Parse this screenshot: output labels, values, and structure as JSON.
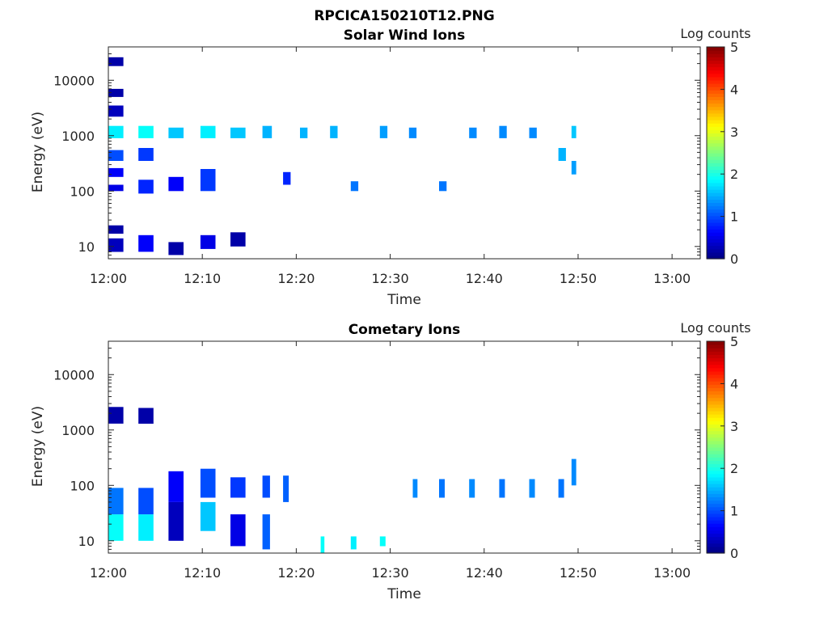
{
  "figure_title": "RPCICA150210T12.PNG",
  "colors": {
    "background": "#ffffff",
    "axis": "#262626",
    "colormap": "jet"
  },
  "chart_data": [
    {
      "type": "heatmap",
      "title": "Solar Wind Ions",
      "xlabel": "Time",
      "ylabel": "Energy (eV)",
      "x_ticks": [
        "12:00",
        "12:10",
        "12:20",
        "12:30",
        "12:40",
        "12:50",
        "13:00"
      ],
      "xlim_minutes": [
        0,
        63
      ],
      "y_scale": "log",
      "y_ticks": [
        10,
        100,
        1000,
        10000
      ],
      "y_tick_labels": [
        "10",
        "100",
        "1000",
        "10000"
      ],
      "ylim": [
        6,
        40000
      ],
      "colorbar": {
        "label": "Log counts",
        "range": [
          0,
          5
        ],
        "ticks": [
          "0",
          "1",
          "2",
          "3",
          "4",
          "5"
        ]
      },
      "time_columns": [
        0,
        3.2,
        6.4,
        9.8,
        13,
        16.4,
        18.6,
        20.4,
        23.6,
        25.8,
        28.9,
        32,
        35.2,
        38.4,
        41.6,
        44.8,
        47.9,
        49.8
      ],
      "cells": [
        {
          "t": [
            0,
            1.6
          ],
          "e": [
            8,
            14
          ],
          "v": 0.3
        },
        {
          "t": [
            0,
            1.6
          ],
          "e": [
            17,
            24
          ],
          "v": 0.2
        },
        {
          "t": [
            0,
            1.6
          ],
          "e": [
            100,
            130
          ],
          "v": 0.5
        },
        {
          "t": [
            0,
            1.6
          ],
          "e": [
            180,
            260
          ],
          "v": 0.6
        },
        {
          "t": [
            0,
            1.6
          ],
          "e": [
            350,
            550
          ],
          "v": 1.0
        },
        {
          "t": [
            0,
            1.6
          ],
          "e": [
            900,
            1500
          ],
          "v": 1.8
        },
        {
          "t": [
            0,
            1.6
          ],
          "e": [
            2200,
            3500
          ],
          "v": 0.3
        },
        {
          "t": [
            0,
            1.6
          ],
          "e": [
            5000,
            7000
          ],
          "v": 0.2
        },
        {
          "t": [
            0,
            1.6
          ],
          "e": [
            18000,
            26000
          ],
          "v": 0.2
        },
        {
          "t": [
            3.2,
            4.8
          ],
          "e": [
            8,
            16
          ],
          "v": 0.6
        },
        {
          "t": [
            3.2,
            4.8
          ],
          "e": [
            90,
            160
          ],
          "v": 0.8
        },
        {
          "t": [
            3.2,
            4.8
          ],
          "e": [
            350,
            600
          ],
          "v": 0.9
        },
        {
          "t": [
            3.2,
            4.8
          ],
          "e": [
            900,
            1500
          ],
          "v": 1.9
        },
        {
          "t": [
            6.4,
            8.0
          ],
          "e": [
            7,
            12
          ],
          "v": 0.2
        },
        {
          "t": [
            6.4,
            8.0
          ],
          "e": [
            100,
            180
          ],
          "v": 0.6
        },
        {
          "t": [
            6.4,
            8.0
          ],
          "e": [
            900,
            1400
          ],
          "v": 1.6
        },
        {
          "t": [
            9.8,
            11.4
          ],
          "e": [
            9,
            16
          ],
          "v": 0.5
        },
        {
          "t": [
            9.8,
            11.4
          ],
          "e": [
            100,
            250
          ],
          "v": 0.9
        },
        {
          "t": [
            9.8,
            11.4
          ],
          "e": [
            900,
            1500
          ],
          "v": 1.8
        },
        {
          "t": [
            13,
            14.6
          ],
          "e": [
            10,
            18
          ],
          "v": 0.2
        },
        {
          "t": [
            13,
            14.6
          ],
          "e": [
            900,
            1400
          ],
          "v": 1.6
        },
        {
          "t": [
            16.4,
            17.4
          ],
          "e": [
            900,
            1500
          ],
          "v": 1.5
        },
        {
          "t": [
            18.6,
            19.4
          ],
          "e": [
            130,
            220
          ],
          "v": 0.8
        },
        {
          "t": [
            20.4,
            21.2
          ],
          "e": [
            900,
            1400
          ],
          "v": 1.5
        },
        {
          "t": [
            23.6,
            24.4
          ],
          "e": [
            900,
            1500
          ],
          "v": 1.5
        },
        {
          "t": [
            25.8,
            26.6
          ],
          "e": [
            100,
            150
          ],
          "v": 1.2
        },
        {
          "t": [
            28.9,
            29.7
          ],
          "e": [
            900,
            1500
          ],
          "v": 1.4
        },
        {
          "t": [
            32,
            32.8
          ],
          "e": [
            900,
            1400
          ],
          "v": 1.3
        },
        {
          "t": [
            35.2,
            36.0
          ],
          "e": [
            100,
            150
          ],
          "v": 1.2
        },
        {
          "t": [
            38.4,
            39.2
          ],
          "e": [
            900,
            1400
          ],
          "v": 1.3
        },
        {
          "t": [
            41.6,
            42.4
          ],
          "e": [
            900,
            1500
          ],
          "v": 1.3
        },
        {
          "t": [
            44.8,
            45.6
          ],
          "e": [
            900,
            1400
          ],
          "v": 1.3
        },
        {
          "t": [
            47.9,
            48.7
          ],
          "e": [
            350,
            600
          ],
          "v": 1.5
        },
        {
          "t": [
            49.3,
            49.8
          ],
          "e": [
            900,
            1500
          ],
          "v": 1.6
        },
        {
          "t": [
            49.3,
            49.8
          ],
          "e": [
            200,
            350
          ],
          "v": 1.4
        }
      ]
    },
    {
      "type": "heatmap",
      "title": "Cometary Ions",
      "xlabel": "Time",
      "ylabel": "Energy (eV)",
      "x_ticks": [
        "12:00",
        "12:10",
        "12:20",
        "12:30",
        "12:40",
        "12:50",
        "13:00"
      ],
      "xlim_minutes": [
        0,
        63
      ],
      "y_scale": "log",
      "y_ticks": [
        10,
        100,
        1000,
        10000
      ],
      "y_tick_labels": [
        "10",
        "100",
        "1000",
        "10000"
      ],
      "ylim": [
        6,
        40000
      ],
      "colorbar": {
        "label": "Log counts",
        "range": [
          0,
          5
        ],
        "ticks": [
          "0",
          "1",
          "2",
          "3",
          "4",
          "5"
        ]
      },
      "time_columns": [
        0,
        3.2,
        6.4,
        9.8,
        13,
        16.4,
        18.6,
        20.4,
        23.6,
        25.8,
        28.9,
        32,
        35.2,
        38.4,
        41.6,
        44.8,
        47.9,
        49.8
      ],
      "cells": [
        {
          "t": [
            0,
            1.6
          ],
          "e": [
            10,
            30
          ],
          "v": 1.9
        },
        {
          "t": [
            0,
            1.6
          ],
          "e": [
            30,
            90
          ],
          "v": 1.2
        },
        {
          "t": [
            0,
            1.6
          ],
          "e": [
            1300,
            2600
          ],
          "v": 0.2
        },
        {
          "t": [
            3.2,
            4.8
          ],
          "e": [
            10,
            30
          ],
          "v": 1.8
        },
        {
          "t": [
            3.2,
            4.8
          ],
          "e": [
            30,
            90
          ],
          "v": 1.0
        },
        {
          "t": [
            3.2,
            4.8
          ],
          "e": [
            1300,
            2500
          ],
          "v": 0.2
        },
        {
          "t": [
            6.4,
            8.0
          ],
          "e": [
            10,
            50
          ],
          "v": 0.3
        },
        {
          "t": [
            6.4,
            8.0
          ],
          "e": [
            50,
            180
          ],
          "v": 0.6
        },
        {
          "t": [
            9.8,
            11.4
          ],
          "e": [
            15,
            50
          ],
          "v": 1.6
        },
        {
          "t": [
            9.8,
            11.4
          ],
          "e": [
            60,
            200
          ],
          "v": 1.0
        },
        {
          "t": [
            13,
            14.6
          ],
          "e": [
            8,
            30
          ],
          "v": 0.5
        },
        {
          "t": [
            13,
            14.6
          ],
          "e": [
            60,
            140
          ],
          "v": 0.9
        },
        {
          "t": [
            16.4,
            17.2
          ],
          "e": [
            7,
            30
          ],
          "v": 1.1
        },
        {
          "t": [
            16.4,
            17.2
          ],
          "e": [
            60,
            150
          ],
          "v": 1.0
        },
        {
          "t": [
            18.6,
            19.2
          ],
          "e": [
            50,
            150
          ],
          "v": 1.1
        },
        {
          "t": [
            22.6,
            23.0
          ],
          "e": [
            6,
            12
          ],
          "v": 1.9
        },
        {
          "t": [
            25.8,
            26.4
          ],
          "e": [
            7,
            12
          ],
          "v": 1.8
        },
        {
          "t": [
            28.9,
            29.5
          ],
          "e": [
            8,
            12
          ],
          "v": 1.9
        },
        {
          "t": [
            32.4,
            32.9
          ],
          "e": [
            60,
            130
          ],
          "v": 1.3
        },
        {
          "t": [
            35.2,
            35.8
          ],
          "e": [
            60,
            130
          ],
          "v": 1.2
        },
        {
          "t": [
            38.4,
            39.0
          ],
          "e": [
            60,
            130
          ],
          "v": 1.3
        },
        {
          "t": [
            41.6,
            42.2
          ],
          "e": [
            60,
            130
          ],
          "v": 1.2
        },
        {
          "t": [
            44.8,
            45.4
          ],
          "e": [
            60,
            130
          ],
          "v": 1.3
        },
        {
          "t": [
            47.9,
            48.5
          ],
          "e": [
            60,
            130
          ],
          "v": 1.2
        },
        {
          "t": [
            49.3,
            49.8
          ],
          "e": [
            100,
            300
          ],
          "v": 1.3
        }
      ]
    }
  ]
}
